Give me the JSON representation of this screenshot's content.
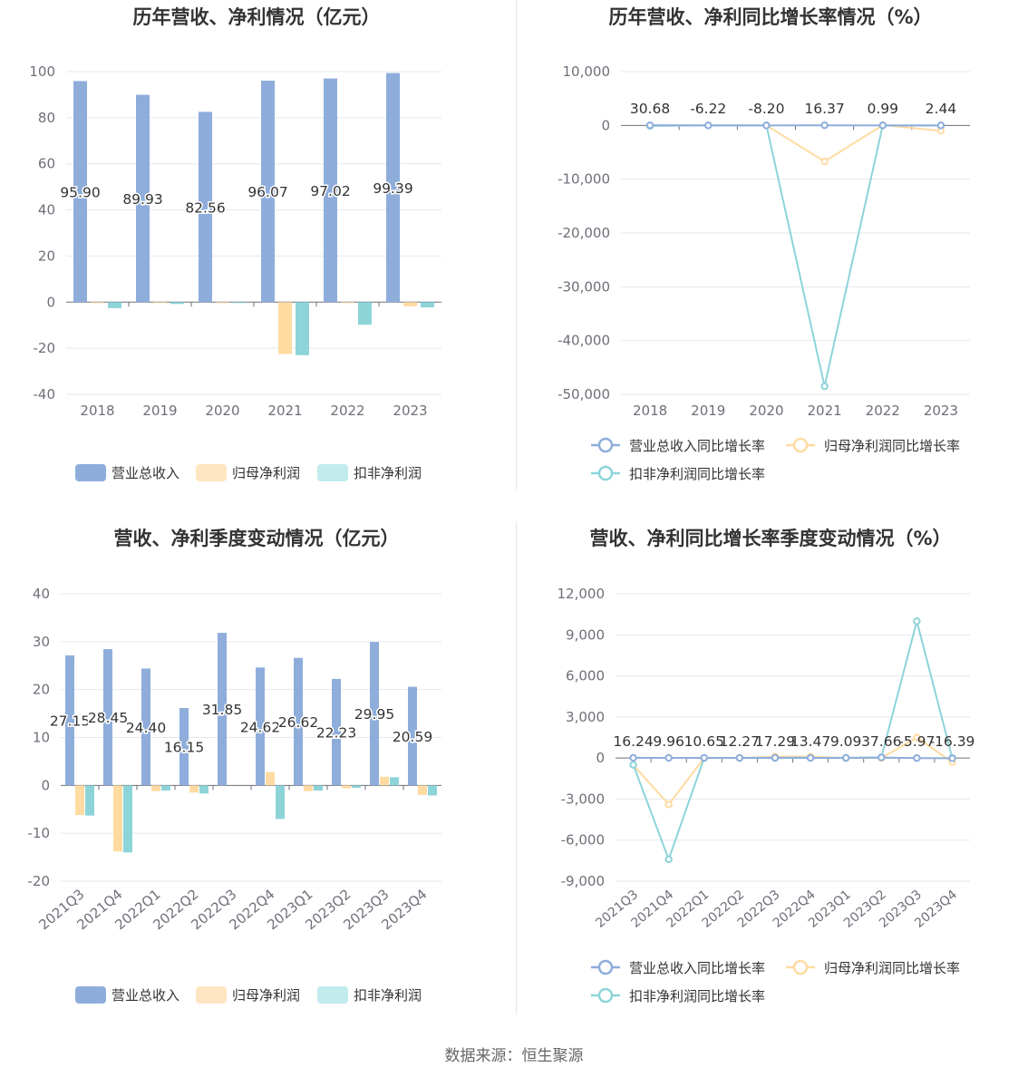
{
  "footer": {
    "source": "数据来源：恒生聚源"
  },
  "colors": {
    "revenue": "#8eaddb",
    "net_profit": "#ffdba2",
    "deducted_profit": "#8dd4d9"
  },
  "chart_data": [
    {
      "type": "bar",
      "title": "历年营收、净利情况（亿元）",
      "categories": [
        "2018",
        "2019",
        "2020",
        "2021",
        "2022",
        "2023"
      ],
      "ylim": [
        -40,
        100
      ],
      "yticks": [
        -40,
        -20,
        0,
        20,
        40,
        60,
        80,
        100
      ],
      "series": [
        {
          "name": "营业总收入",
          "values": [
            95.9,
            89.93,
            82.56,
            96.07,
            97.02,
            99.39
          ],
          "labels": [
            "95.90",
            "89.93",
            "82.56",
            "96.07",
            "97.02",
            "99.39"
          ]
        },
        {
          "name": "归母净利润",
          "values": [
            -0.4,
            -0.2,
            -0.3,
            -22.5,
            -0.3,
            -1.8
          ]
        },
        {
          "name": "扣非净利润",
          "values": [
            -2.6,
            -0.8,
            -0.3,
            -23.0,
            -9.8,
            -2.3
          ]
        }
      ],
      "legend": "bottom"
    },
    {
      "type": "line",
      "title": "历年营收、净利同比增长率情况（%）",
      "categories": [
        "2018",
        "2019",
        "2020",
        "2021",
        "2022",
        "2023"
      ],
      "ylim": [
        -50000,
        10000
      ],
      "yticks": [
        -50000,
        -40000,
        -30000,
        -20000,
        -10000,
        0,
        10000
      ],
      "ytick_labels": [
        "-50,000",
        "-40,000",
        "-30,000",
        "-20,000",
        "-10,000",
        "0",
        "10,000"
      ],
      "series": [
        {
          "name": "营业总收入同比增长率",
          "values": [
            30.68,
            -6.22,
            -8.2,
            16.37,
            0.99,
            2.44
          ],
          "labels": [
            "30.68",
            "-6.22",
            "-8.20",
            "16.37",
            "0.99",
            "2.44"
          ]
        },
        {
          "name": "归母净利润同比增长率",
          "values": [
            0,
            0,
            0,
            -6700,
            50,
            -1000
          ]
        },
        {
          "name": "扣非净利润同比增长率",
          "values": [
            -100,
            0,
            0,
            -48500,
            0,
            0
          ]
        }
      ],
      "legend": "bottom"
    },
    {
      "type": "bar",
      "title": "营收、净利季度变动情况（亿元）",
      "categories": [
        "2021Q3",
        "2021Q4",
        "2022Q1",
        "2022Q2",
        "2022Q3",
        "2022Q4",
        "2023Q1",
        "2023Q2",
        "2023Q3",
        "2023Q4"
      ],
      "ylim": [
        -20,
        40
      ],
      "yticks": [
        -20,
        -10,
        0,
        10,
        20,
        30,
        40
      ],
      "series": [
        {
          "name": "营业总收入",
          "values": [
            27.15,
            28.45,
            24.4,
            16.15,
            31.85,
            24.62,
            26.62,
            22.23,
            29.95,
            20.59
          ],
          "labels": [
            "27.15",
            "28.45",
            "24.40",
            "16.15",
            "31.85",
            "24.62",
            "26.62",
            "22.23",
            "29.95",
            "20.59"
          ]
        },
        {
          "name": "归母净利润",
          "values": [
            -6.2,
            -13.8,
            -1.2,
            -1.5,
            0,
            2.8,
            -1.2,
            -0.6,
            1.8,
            -2.0
          ]
        },
        {
          "name": "扣非净利润",
          "values": [
            -6.3,
            -14.0,
            -1.1,
            -1.7,
            0,
            -7.0,
            -1.1,
            -0.5,
            1.7,
            -2.1
          ]
        }
      ],
      "legend": "bottom"
    },
    {
      "type": "line",
      "title": "营收、净利同比增长率季度变动情况（%）",
      "categories": [
        "2021Q3",
        "2021Q4",
        "2022Q1",
        "2022Q2",
        "2022Q3",
        "2022Q4",
        "2023Q1",
        "2023Q2",
        "2023Q3",
        "2023Q4"
      ],
      "ylim": [
        -9000,
        12000
      ],
      "yticks": [
        -9000,
        -6000,
        -3000,
        0,
        3000,
        6000,
        9000,
        12000
      ],
      "ytick_labels": [
        "-9,000",
        "-6,000",
        "-3,000",
        "0",
        "3,000",
        "6,000",
        "9,000",
        "12,000"
      ],
      "series": [
        {
          "name": "营业总收入同比增长率",
          "values": [
            16.24,
            9.96,
            10.65,
            12.27,
            17.29,
            13.47,
            9.09,
            37.66,
            -5.97,
            -16.39
          ],
          "labels": [
            "16.24",
            "9.96",
            "10.65",
            "12.27",
            "17.29",
            "13.47",
            "9.09",
            "37.66",
            "-5.97",
            "-16.39"
          ]
        },
        {
          "name": "归母净利润同比增长率",
          "values": [
            -500,
            -3400,
            0,
            0,
            100,
            100,
            0,
            0,
            1500,
            -300
          ]
        },
        {
          "name": "扣非净利润同比增长率",
          "values": [
            -500,
            -7400,
            0,
            0,
            0,
            0,
            0,
            50,
            10000,
            0
          ]
        }
      ],
      "legend": "bottom"
    }
  ]
}
